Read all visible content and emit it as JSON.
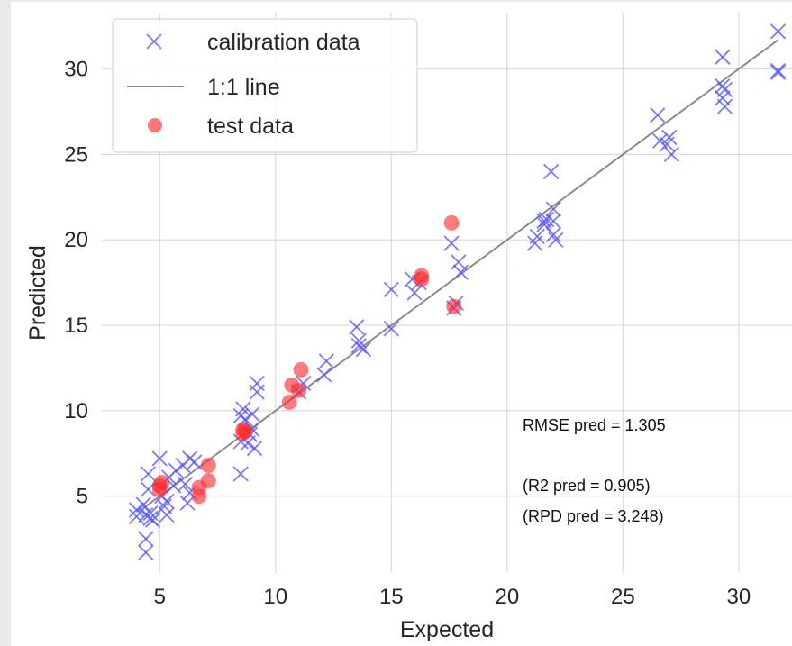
{
  "chart_data": {
    "type": "scatter",
    "xlabel": "Expected",
    "ylabel": "Predicted",
    "xlim": [
      2.5,
      32.3
    ],
    "ylim": [
      0.5,
      33.3
    ],
    "xticks": [
      5,
      10,
      15,
      20,
      25,
      30
    ],
    "yticks": [
      5,
      10,
      15,
      20,
      25,
      30
    ],
    "grid": true,
    "legend_position": "top-left",
    "colors": {
      "calibration": "#5a5aff",
      "line": "#8c8c8c",
      "test": "#ff2a2a",
      "grid": "#dcdcdc"
    },
    "series": [
      {
        "name": "calibration data",
        "marker": "x",
        "points": [
          [
            4.0,
            4.2
          ],
          [
            4.0,
            3.8
          ],
          [
            4.3,
            4.5
          ],
          [
            4.4,
            3.9
          ],
          [
            4.4,
            2.5
          ],
          [
            4.4,
            1.7
          ],
          [
            4.5,
            5.4
          ],
          [
            4.5,
            6.3
          ],
          [
            4.6,
            4.0
          ],
          [
            4.6,
            3.7
          ],
          [
            4.7,
            3.6
          ],
          [
            5.0,
            7.2
          ],
          [
            5.1,
            5.0
          ],
          [
            5.2,
            4.4
          ],
          [
            5.3,
            3.9
          ],
          [
            5.3,
            4.7
          ],
          [
            5.4,
            6.1
          ],
          [
            5.6,
            5.6
          ],
          [
            5.7,
            6.5
          ],
          [
            6.0,
            6.8
          ],
          [
            6.1,
            5.7
          ],
          [
            6.2,
            4.6
          ],
          [
            6.3,
            5.2
          ],
          [
            6.3,
            7.2
          ],
          [
            6.5,
            7.0
          ],
          [
            8.5,
            9.7
          ],
          [
            8.5,
            8.2
          ],
          [
            8.5,
            6.3
          ],
          [
            8.6,
            10.1
          ],
          [
            8.7,
            9.5
          ],
          [
            8.8,
            8.1
          ],
          [
            8.9,
            8.6
          ],
          [
            9.0,
            9.8
          ],
          [
            9.0,
            8.9
          ],
          [
            9.1,
            7.8
          ],
          [
            9.2,
            11.6
          ],
          [
            9.2,
            11.1
          ],
          [
            11.0,
            11.1
          ],
          [
            11.2,
            11.6
          ],
          [
            12.1,
            12.1
          ],
          [
            12.2,
            12.9
          ],
          [
            13.5,
            14.9
          ],
          [
            13.6,
            14.1
          ],
          [
            13.6,
            13.8
          ],
          [
            13.8,
            13.6
          ],
          [
            15.0,
            17.1
          ],
          [
            15.0,
            14.8
          ],
          [
            15.9,
            17.7
          ],
          [
            16.0,
            16.9
          ],
          [
            16.2,
            17.5
          ],
          [
            17.6,
            19.8
          ],
          [
            17.7,
            16.0
          ],
          [
            17.8,
            16.3
          ],
          [
            17.9,
            18.7
          ],
          [
            18.0,
            18.1
          ],
          [
            21.2,
            19.8
          ],
          [
            21.3,
            20.2
          ],
          [
            21.6,
            21.1
          ],
          [
            21.6,
            20.9
          ],
          [
            21.7,
            21.2
          ],
          [
            21.9,
            24.0
          ],
          [
            22.0,
            21.8
          ],
          [
            22.0,
            21.1
          ],
          [
            22.0,
            20.3
          ],
          [
            22.1,
            20.0
          ],
          [
            26.5,
            27.3
          ],
          [
            26.6,
            25.8
          ],
          [
            26.9,
            25.6
          ],
          [
            27.0,
            26.0
          ],
          [
            27.1,
            25.0
          ],
          [
            29.3,
            30.7
          ],
          [
            29.3,
            29.0
          ],
          [
            29.3,
            28.3
          ],
          [
            29.4,
            27.8
          ],
          [
            29.4,
            28.8
          ],
          [
            31.7,
            32.2
          ],
          [
            31.7,
            29.9
          ],
          [
            31.7,
            29.8
          ]
        ]
      },
      {
        "name": "1:1 line",
        "type": "line",
        "x": [
          4.1,
          31.7
        ],
        "y": [
          4.1,
          31.7
        ]
      },
      {
        "name": "test data",
        "marker": "o",
        "points": [
          [
            5.0,
            5.6
          ],
          [
            5.0,
            5.4
          ],
          [
            5.1,
            5.8
          ],
          [
            6.7,
            5.0
          ],
          [
            6.7,
            5.5
          ],
          [
            7.1,
            5.9
          ],
          [
            7.1,
            6.8
          ],
          [
            8.6,
            8.7
          ],
          [
            8.7,
            8.8
          ],
          [
            8.6,
            8.9
          ],
          [
            10.6,
            10.5
          ],
          [
            10.7,
            11.5
          ],
          [
            11.0,
            11.2
          ],
          [
            11.1,
            12.4
          ],
          [
            16.3,
            17.7
          ],
          [
            16.3,
            17.9
          ],
          [
            17.6,
            21.0
          ],
          [
            17.7,
            16.1
          ]
        ]
      }
    ],
    "annotations": [
      "RMSE pred = 1.305",
      "(R2 pred = 0.905)",
      "(RPD pred = 3.248)"
    ]
  }
}
